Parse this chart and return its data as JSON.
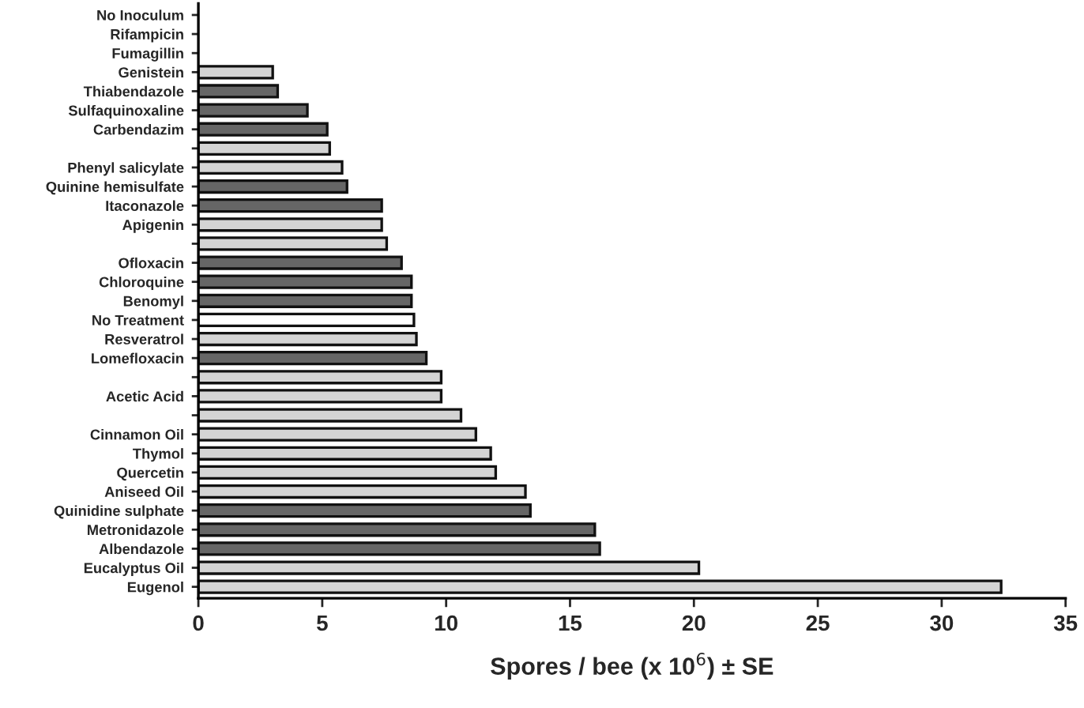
{
  "chart_data": {
    "type": "bar",
    "orientation": "horizontal",
    "xlabel": "Spores / bee (x 10$^{6}$) ± SE",
    "categories": [
      "No Inoculum",
      "Rifampicin",
      "Fumagillin",
      "Genistein",
      "Thiabendazole",
      "Sulfaquinoxaline",
      "Carbendazim",
      null,
      "Phenyl salicylate",
      "Quinine hemisulfate",
      "Itaconazole",
      "Apigenin",
      null,
      "Ofloxacin",
      "Chloroquine",
      "Benomyl",
      "No Treatment",
      "Resveratrol",
      "Lomefloxacin",
      null,
      "Acetic Acid",
      null,
      "Cinnamon Oil",
      "Thymol",
      "Quercetin",
      "Aniseed Oil",
      "Quinidine sulphate",
      "Metronidazole",
      "Albendazole",
      "Eucalyptus Oil",
      "Eugenol"
    ],
    "values": [
      0,
      0,
      0,
      3.0,
      3.2,
      4.4,
      5.2,
      5.3,
      5.8,
      6.0,
      7.4,
      7.4,
      7.6,
      8.2,
      8.6,
      8.6,
      8.7,
      8.8,
      9.2,
      9.8,
      9.8,
      10.6,
      11.2,
      11.8,
      12.0,
      13.2,
      13.4,
      16.0,
      16.2,
      20.2,
      32.4
    ],
    "colors": [
      "#d4d4d4",
      "#d4d4d4",
      "#d4d4d4",
      "#d4d4d4",
      "#666666",
      "#666666",
      "#666666",
      "#d4d4d4",
      "#d4d4d4",
      "#666666",
      "#666666",
      "#d4d4d4",
      "#d4d4d4",
      "#666666",
      "#666666",
      "#666666",
      "#ffffff",
      "#d4d4d4",
      "#666666",
      "#d4d4d4",
      "#d4d4d4",
      "#d4d4d4",
      "#d4d4d4",
      "#d4d4d4",
      "#d4d4d4",
      "#d4d4d4",
      "#666666",
      "#666666",
      "#666666",
      "#d4d4d4",
      "#d4d4d4"
    ],
    "xlim": [
      0,
      35
    ],
    "xticks": [
      0,
      5,
      10,
      15,
      20,
      25,
      30,
      35
    ],
    "grid": false,
    "legend": false
  }
}
